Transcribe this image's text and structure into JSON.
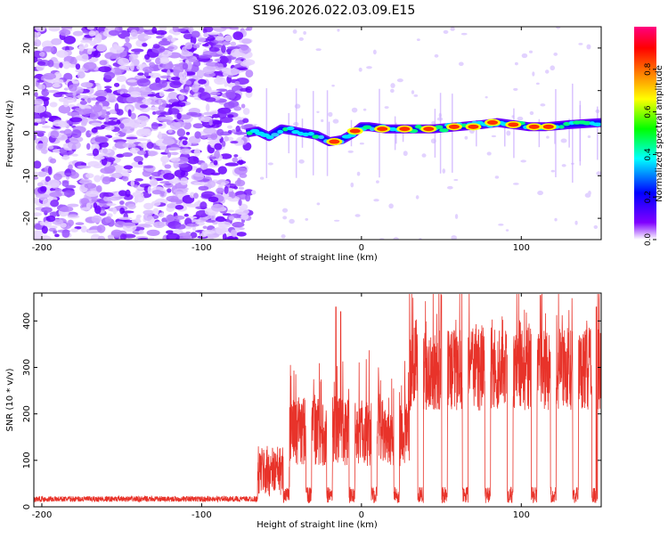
{
  "title": "S196.2026.022.03.09.E15",
  "chart_data": [
    {
      "type": "heatmap",
      "name": "spectrogram",
      "xlabel": "Height of straight line (km)",
      "ylabel": "Frequency (Hz)",
      "xlim": [
        -205,
        150
      ],
      "ylim": [
        -25,
        25
      ],
      "xticks": [
        -200,
        -100,
        0,
        100
      ],
      "yticks": [
        -20,
        -10,
        0,
        10,
        20
      ],
      "ridge": [
        {
          "x": -72,
          "y": 0.0
        },
        {
          "x": -65,
          "y": 0.5
        },
        {
          "x": -58,
          "y": -0.8
        },
        {
          "x": -50,
          "y": 1.0
        },
        {
          "x": -42,
          "y": 0.5
        },
        {
          "x": -35,
          "y": 0.0
        },
        {
          "x": -28,
          "y": -0.5
        },
        {
          "x": -20,
          "y": -2.0
        },
        {
          "x": -12,
          "y": -1.5
        },
        {
          "x": -5,
          "y": 0.0
        },
        {
          "x": 0,
          "y": 1.5
        },
        {
          "x": 5,
          "y": 1.5
        },
        {
          "x": 15,
          "y": 1.0
        },
        {
          "x": 30,
          "y": 1.0
        },
        {
          "x": 45,
          "y": 1.0
        },
        {
          "x": 60,
          "y": 1.5
        },
        {
          "x": 75,
          "y": 2.0
        },
        {
          "x": 85,
          "y": 2.5
        },
        {
          "x": 95,
          "y": 2.0
        },
        {
          "x": 105,
          "y": 1.5
        },
        {
          "x": 115,
          "y": 1.5
        },
        {
          "x": 130,
          "y": 2.0
        },
        {
          "x": 150,
          "y": 2.5
        }
      ],
      "peaks": [
        {
          "x": -17,
          "y": -2.0
        },
        {
          "x": -4,
          "y": 0.5
        },
        {
          "x": 13,
          "y": 1.0
        },
        {
          "x": 27,
          "y": 1.0
        },
        {
          "x": 42,
          "y": 1.0
        },
        {
          "x": 58,
          "y": 1.5
        },
        {
          "x": 70,
          "y": 1.5
        },
        {
          "x": 82,
          "y": 2.5
        },
        {
          "x": 95,
          "y": 2.0
        },
        {
          "x": 108,
          "y": 1.5
        },
        {
          "x": 117,
          "y": 1.5
        }
      ],
      "colorbar": {
        "label": "Normalized spectral amplitude",
        "range": [
          0,
          1
        ],
        "ticks": [
          "0.0",
          "0.2",
          "0.4",
          "0.6",
          "0.8"
        ],
        "colors": [
          "#ffffff",
          "#8000ff",
          "#0000ff",
          "#00ffff",
          "#00ff00",
          "#ffff00",
          "#ff8000",
          "#ff0000",
          "#ff0080"
        ]
      }
    },
    {
      "type": "line",
      "name": "snr",
      "xlabel": "Height of straight line (km)",
      "ylabel": "SNR (10 * v/v)",
      "xlim": [
        -205,
        150
      ],
      "ylim": [
        0,
        460
      ],
      "xticks": [
        -200,
        -100,
        0,
        100
      ],
      "yticks": [
        0,
        100,
        200,
        300,
        400
      ],
      "color": "#e8332a",
      "regimes": [
        {
          "from": -205,
          "to": -65,
          "base": 15,
          "jitter": 12
        },
        {
          "from": -65,
          "to": -45,
          "base": 60,
          "jitter": 110
        },
        {
          "from": -45,
          "to": 30,
          "base": 140,
          "jitter": 150
        },
        {
          "from": 30,
          "to": 150,
          "base": 270,
          "jitter": 180
        }
      ],
      "dips": [
        -47,
        -33,
        -20,
        -6,
        8,
        22,
        37,
        52,
        65,
        79,
        93,
        108,
        120,
        134,
        146
      ],
      "spikes": [
        {
          "x": -16,
          "y": 430
        },
        {
          "x": -13,
          "y": 420
        },
        {
          "x": 50,
          "y": 455
        },
        {
          "x": 112,
          "y": 455
        },
        {
          "x": 147,
          "y": 430
        }
      ]
    }
  ]
}
